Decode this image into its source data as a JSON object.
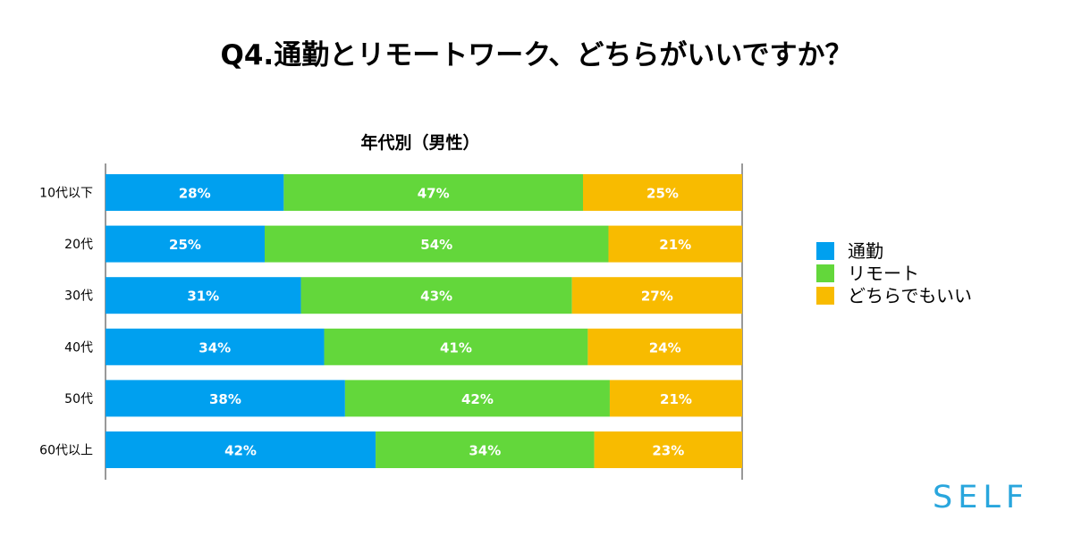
{
  "title": "Q4.通勤とリモートワーク、どちらがいいですか？",
  "brand": "SELF",
  "chart_data": {
    "type": "bar",
    "orientation": "horizontal",
    "stacked": true,
    "title": "年代別（男性）",
    "categories": [
      "10代以下",
      "20代",
      "30代",
      "40代",
      "50代",
      "60代以上"
    ],
    "series": [
      {
        "name": "通勤",
        "color": "#00a0ef",
        "values": [
          28,
          25,
          31,
          34,
          38,
          42
        ]
      },
      {
        "name": "リモート",
        "color": "#63d73b",
        "values": [
          47,
          54,
          43,
          41,
          42,
          34
        ]
      },
      {
        "name": "どちらでもいい",
        "color": "#f8bb00",
        "values": [
          25,
          21,
          27,
          24,
          21,
          23
        ]
      }
    ],
    "value_suffix": "%",
    "legend_position": "right",
    "grid": false
  }
}
